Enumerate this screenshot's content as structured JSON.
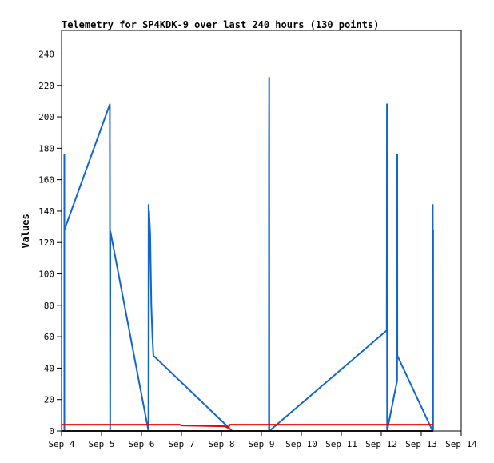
{
  "chart_data": {
    "type": "line",
    "title": "Telemetry for SP4KDK-9 over last 240 hours (130 points)",
    "xlabel": "",
    "ylabel": "Values",
    "x_ticks": [
      "Sep 4",
      "Sep 5",
      "Sep 6",
      "Sep 7",
      "Sep 8",
      "Sep 9",
      "Sep 10",
      "Sep 11",
      "Sep 12",
      "Sep 13",
      "Sep 14"
    ],
    "xlim": [
      "Sep 4 00:00",
      "Sep 14 00:00"
    ],
    "ylim": [
      0,
      255
    ],
    "y_ticks": [
      0,
      20,
      40,
      60,
      80,
      100,
      120,
      140,
      160,
      180,
      200,
      220,
      240
    ],
    "grid": false,
    "series": [
      {
        "color": "#1166cc",
        "points": [
          [
            "Sep 4 00:00",
            0
          ],
          [
            "Sep 4 00:00",
            0
          ],
          [
            "Sep 4 01:40",
            0
          ],
          [
            "Sep 4 01:40",
            176
          ],
          [
            "Sep 4 01:40",
            128
          ],
          [
            "Sep 5 05:00",
            208
          ],
          [
            "Sep 5 05:10",
            0
          ],
          [
            "Sep 5 05:20",
            127
          ],
          [
            "Sep 6 04:10",
            0
          ],
          [
            "Sep 6 04:15",
            144
          ],
          [
            "Sep 6 04:20",
            0
          ],
          [
            "Sep 6 04:25",
            80
          ],
          [
            "Sep 6 04:35",
            140
          ],
          [
            "Sep 6 05:15",
            125
          ],
          [
            "Sep 6 05:55",
            80
          ],
          [
            "Sep 6 06:35",
            60
          ],
          [
            "Sep 6 07:10",
            48
          ],
          [
            "Sep 8 06:30",
            0
          ],
          [
            "Sep 9 04:30",
            0
          ],
          [
            "Sep 9 04:35",
            176
          ],
          [
            "Sep 9 04:40",
            225
          ],
          [
            "Sep 9 04:45",
            0
          ],
          [
            "Sep 12 03:15",
            64
          ],
          [
            "Sep 12 03:20",
            104
          ],
          [
            "Sep 12 03:25",
            208
          ],
          [
            "Sep 12 03:30",
            0
          ],
          [
            "Sep 12 09:30",
            32
          ],
          [
            "Sep 12 09:35",
            176
          ],
          [
            "Sep 12 09:40",
            48
          ],
          [
            "Sep 13 06:50",
            0
          ],
          [
            "Sep 13 06:55",
            144
          ],
          [
            "Sep 13 07:05",
            0
          ],
          [
            "Sep 13 07:10",
            128
          ]
        ]
      },
      {
        "color": "#ee0000",
        "points": [
          [
            "Sep 4 00:00",
            4
          ],
          [
            "Sep 6 23:00",
            4
          ],
          [
            "Sep 7 00:00",
            3.5
          ],
          [
            "Sep 8 02:00",
            3
          ],
          [
            "Sep 8 04:00",
            2
          ],
          [
            "Sep 8 05:00",
            4
          ],
          [
            "Sep 13 07:10",
            4
          ]
        ]
      },
      {
        "color": "#111111",
        "points": [
          [
            "Sep 4 00:00",
            0
          ],
          [
            "Sep 13 07:10",
            0
          ]
        ]
      }
    ]
  }
}
